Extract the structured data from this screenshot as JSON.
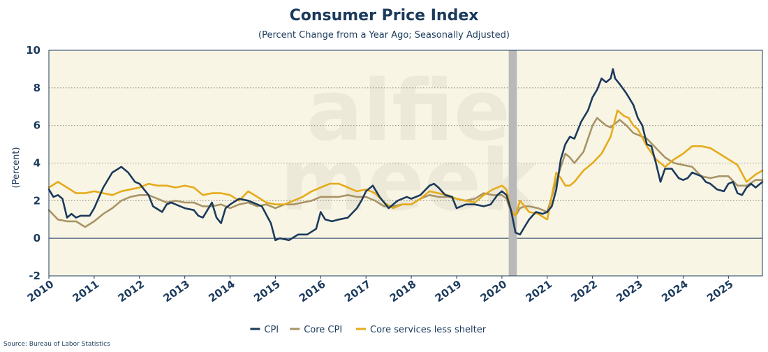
{
  "chart_data": {
    "type": "line",
    "title": "Consumer Price Index",
    "subtitle": "(Percent Change from a Year Ago; Seasonally Adjusted)",
    "ylabel": "(Percent)",
    "xlabel": "",
    "ylim": [
      -2,
      10
    ],
    "yticks": [
      -2,
      0,
      2,
      4,
      6,
      8,
      10
    ],
    "xlim": [
      2010,
      2025.75
    ],
    "xticks": [
      "2010",
      "2011",
      "2012",
      "2013",
      "2014",
      "2015",
      "2016",
      "2017",
      "2018",
      "2019",
      "2020",
      "2021",
      "2022",
      "2023",
      "2024",
      "2025"
    ],
    "grid": "horizontal dotted",
    "legend_position": "bottom-center",
    "recession_band": [
      2020.15,
      2020.33
    ],
    "source": "Source: Bureau of Labor Statistics",
    "watermark": [
      "alfie",
      "meek"
    ],
    "colors": {
      "CPI": "#1b3a5c",
      "Core CPI": "#a89466",
      "Core services less shelter": "#e5ab1b",
      "plot_background": "#f9f5e4",
      "recession": "#b9b9b9",
      "text": "#1b3a5c"
    },
    "series": [
      {
        "name": "CPI",
        "x": [
          2010,
          2010.1,
          2010.2,
          2010.3,
          2010.4,
          2010.5,
          2010.6,
          2010.7,
          2010.9,
          2011.0,
          2011.2,
          2011.4,
          2011.6,
          2011.75,
          2011.9,
          2012.0,
          2012.2,
          2012.3,
          2012.5,
          2012.6,
          2012.7,
          2012.8,
          2012.9,
          2013.0,
          2013.2,
          2013.3,
          2013.4,
          2013.6,
          2013.7,
          2013.8,
          2013.9,
          2014.0,
          2014.2,
          2014.4,
          2014.5,
          2014.7,
          2014.9,
          2015.0,
          2015.1,
          2015.3,
          2015.5,
          2015.7,
          2015.9,
          2016.0,
          2016.1,
          2016.25,
          2016.4,
          2016.6,
          2016.8,
          2016.9,
          2017.0,
          2017.15,
          2017.3,
          2017.5,
          2017.7,
          2017.9,
          2018.0,
          2018.2,
          2018.4,
          2018.5,
          2018.6,
          2018.75,
          2018.9,
          2019.0,
          2019.2,
          2019.4,
          2019.6,
          2019.75,
          2019.9,
          2020.0,
          2020.1,
          2020.2,
          2020.3,
          2020.4,
          2020.5,
          2020.6,
          2020.75,
          2020.9,
          2021.0,
          2021.1,
          2021.2,
          2021.3,
          2021.4,
          2021.5,
          2021.6,
          2021.75,
          2021.9,
          2022.0,
          2022.1,
          2022.2,
          2022.3,
          2022.4,
          2022.45,
          2022.5,
          2022.6,
          2022.75,
          2022.9,
          2023.0,
          2023.1,
          2023.2,
          2023.3,
          2023.4,
          2023.5,
          2023.6,
          2023.75,
          2023.9,
          2024.0,
          2024.1,
          2024.2,
          2024.3,
          2024.4,
          2024.5,
          2024.6,
          2024.75,
          2024.9,
          2025.0,
          2025.1,
          2025.2,
          2025.3,
          2025.4,
          2025.5,
          2025.6,
          2025.75
        ],
        "y": [
          2.6,
          2.2,
          2.3,
          2.1,
          1.1,
          1.3,
          1.1,
          1.2,
          1.2,
          1.6,
          2.7,
          3.5,
          3.8,
          3.5,
          3.0,
          2.9,
          2.3,
          1.7,
          1.4,
          1.8,
          1.9,
          1.8,
          1.7,
          1.6,
          1.5,
          1.2,
          1.1,
          1.9,
          1.1,
          0.8,
          1.6,
          1.8,
          2.1,
          2.0,
          1.9,
          1.7,
          0.8,
          -0.1,
          0.0,
          -0.1,
          0.2,
          0.2,
          0.5,
          1.4,
          1.0,
          0.9,
          1.0,
          1.1,
          1.6,
          2.0,
          2.5,
          2.8,
          2.2,
          1.6,
          2.0,
          2.2,
          2.1,
          2.3,
          2.8,
          2.9,
          2.7,
          2.3,
          2.2,
          1.6,
          1.8,
          1.8,
          1.7,
          1.8,
          2.3,
          2.5,
          2.3,
          1.5,
          0.3,
          0.2,
          0.6,
          1.0,
          1.4,
          1.3,
          1.4,
          1.7,
          2.6,
          4.2,
          5.0,
          5.4,
          5.3,
          6.2,
          6.8,
          7.5,
          7.9,
          8.5,
          8.3,
          8.5,
          9.0,
          8.5,
          8.2,
          7.7,
          7.1,
          6.4,
          6.0,
          5.0,
          4.9,
          4.0,
          3.0,
          3.7,
          3.7,
          3.2,
          3.1,
          3.2,
          3.5,
          3.4,
          3.3,
          3.0,
          2.9,
          2.6,
          2.5,
          2.9,
          3.0,
          2.4,
          2.3,
          2.7,
          2.9,
          2.7,
          3.0
        ]
      },
      {
        "name": "Core CPI",
        "x": [
          2010,
          2010.2,
          2010.4,
          2010.6,
          2010.8,
          2011.0,
          2011.2,
          2011.4,
          2011.6,
          2011.8,
          2012.0,
          2012.2,
          2012.4,
          2012.6,
          2012.8,
          2013.0,
          2013.2,
          2013.4,
          2013.6,
          2013.8,
          2014.0,
          2014.2,
          2014.4,
          2014.6,
          2014.8,
          2015.0,
          2015.2,
          2015.4,
          2015.6,
          2015.8,
          2016.0,
          2016.2,
          2016.4,
          2016.6,
          2016.8,
          2017.0,
          2017.2,
          2017.4,
          2017.6,
          2017.8,
          2018.0,
          2018.2,
          2018.4,
          2018.6,
          2018.8,
          2019.0,
          2019.2,
          2019.4,
          2019.6,
          2019.8,
          2020.0,
          2020.1,
          2020.2,
          2020.3,
          2020.4,
          2020.5,
          2020.6,
          2020.8,
          2021.0,
          2021.2,
          2021.3,
          2021.4,
          2021.5,
          2021.6,
          2021.8,
          2022.0,
          2022.1,
          2022.2,
          2022.3,
          2022.4,
          2022.6,
          2022.75,
          2022.9,
          2023.0,
          2023.2,
          2023.4,
          2023.6,
          2023.8,
          2024.0,
          2024.2,
          2024.4,
          2024.6,
          2024.8,
          2025.0,
          2025.2,
          2025.4,
          2025.6,
          2025.75
        ],
        "y": [
          1.5,
          1.0,
          0.9,
          0.9,
          0.6,
          0.9,
          1.3,
          1.6,
          2.0,
          2.2,
          2.3,
          2.3,
          2.1,
          1.9,
          2.0,
          1.9,
          1.9,
          1.7,
          1.7,
          1.8,
          1.6,
          1.8,
          1.9,
          1.7,
          1.8,
          1.6,
          1.8,
          1.8,
          1.9,
          2.0,
          2.2,
          2.2,
          2.2,
          2.3,
          2.2,
          2.2,
          2.0,
          1.7,
          1.7,
          1.8,
          1.8,
          2.1,
          2.3,
          2.2,
          2.2,
          2.1,
          2.0,
          2.1,
          2.4,
          2.3,
          2.3,
          2.1,
          1.4,
          1.2,
          1.6,
          1.7,
          1.7,
          1.6,
          1.4,
          3.0,
          3.8,
          4.5,
          4.3,
          4.0,
          4.6,
          6.0,
          6.4,
          6.2,
          6.0,
          5.9,
          6.3,
          6.0,
          5.6,
          5.5,
          5.3,
          4.8,
          4.3,
          4.0,
          3.9,
          3.8,
          3.3,
          3.2,
          3.3,
          3.3,
          2.8,
          2.8,
          3.1,
          3.1
        ]
      },
      {
        "name": "Core services less shelter",
        "x": [
          2010,
          2010.2,
          2010.4,
          2010.6,
          2010.8,
          2011.0,
          2011.2,
          2011.4,
          2011.6,
          2011.8,
          2012.0,
          2012.2,
          2012.4,
          2012.6,
          2012.8,
          2013.0,
          2013.2,
          2013.4,
          2013.6,
          2013.8,
          2014.0,
          2014.2,
          2014.4,
          2014.6,
          2014.8,
          2015.0,
          2015.2,
          2015.4,
          2015.6,
          2015.8,
          2016.0,
          2016.2,
          2016.4,
          2016.6,
          2016.8,
          2017.0,
          2017.2,
          2017.4,
          2017.6,
          2017.8,
          2018.0,
          2018.2,
          2018.4,
          2018.6,
          2018.8,
          2019.0,
          2019.2,
          2019.4,
          2019.6,
          2019.8,
          2020.0,
          2020.1,
          2020.2,
          2020.3,
          2020.4,
          2020.5,
          2020.6,
          2020.8,
          2021.0,
          2021.2,
          2021.3,
          2021.4,
          2021.5,
          2021.6,
          2021.8,
          2022.0,
          2022.2,
          2022.4,
          2022.55,
          2022.7,
          2022.8,
          2022.9,
          2023.0,
          2023.2,
          2023.4,
          2023.6,
          2023.8,
          2024.0,
          2024.2,
          2024.4,
          2024.6,
          2024.8,
          2025.0,
          2025.2,
          2025.4,
          2025.6,
          2025.75
        ],
        "y": [
          2.7,
          3.0,
          2.7,
          2.4,
          2.4,
          2.5,
          2.4,
          2.3,
          2.5,
          2.6,
          2.7,
          2.9,
          2.8,
          2.8,
          2.7,
          2.8,
          2.7,
          2.3,
          2.4,
          2.4,
          2.3,
          2.0,
          2.5,
          2.2,
          1.9,
          1.8,
          1.8,
          2.0,
          2.2,
          2.5,
          2.7,
          2.9,
          2.9,
          2.7,
          2.5,
          2.6,
          2.4,
          1.9,
          1.6,
          1.8,
          1.8,
          2.1,
          2.5,
          2.4,
          2.3,
          2.1,
          2.0,
          1.9,
          2.3,
          2.6,
          2.8,
          2.6,
          1.5,
          1.2,
          2.0,
          1.7,
          1.4,
          1.3,
          1.0,
          3.5,
          3.2,
          2.8,
          2.8,
          3.0,
          3.6,
          4.0,
          4.5,
          5.4,
          6.8,
          6.5,
          6.4,
          6.0,
          5.8,
          4.9,
          4.2,
          3.8,
          4.2,
          4.5,
          4.9,
          4.9,
          4.8,
          4.5,
          4.2,
          3.9,
          3.0,
          3.4,
          3.6
        ]
      }
    ]
  }
}
